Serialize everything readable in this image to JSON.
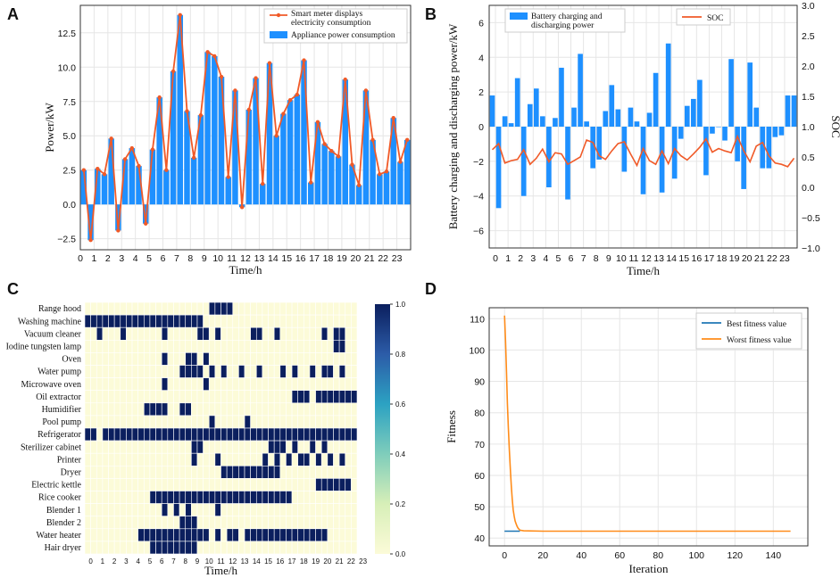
{
  "panels": {
    "A": {
      "letter": "A"
    },
    "B": {
      "letter": "B"
    },
    "C": {
      "letter": "C"
    },
    "D": {
      "letter": "D"
    }
  },
  "colors": {
    "bar_blue": "#1E90FF",
    "line_orange": "#F05A28",
    "heat_on": "#0B1F5E",
    "heat_off": "#FCFBD8",
    "best_line": "#1F77B4",
    "worst_line": "#FF8C1A",
    "grid": "#E6E6E6"
  },
  "chart_data": [
    {
      "id": "A",
      "type": "bar",
      "title": "",
      "xlabel": "Time/h",
      "ylabel": "Power/kW",
      "ylim": [
        -3.3,
        14.5
      ],
      "xlim": [
        0,
        24
      ],
      "x_ticks": [
        "0",
        "1",
        "2",
        "3",
        "4",
        "5",
        "6",
        "7",
        "8",
        "9",
        "10",
        "11",
        "12",
        "13",
        "14",
        "15",
        "16",
        "17",
        "18",
        "19",
        "20",
        "21",
        "22",
        "23"
      ],
      "y_ticks": [
        "−2.5",
        "0.0",
        "2.5",
        "5.0",
        "7.5",
        "10.0",
        "12.5"
      ],
      "y_tick_values": [
        -2.5,
        0,
        2.5,
        5,
        7.5,
        10,
        12.5
      ],
      "legend": [
        "Smart meter displays electricity consumption",
        "Appliance power consumption"
      ],
      "series": [
        {
          "name": "Appliance power consumption",
          "type": "bar",
          "values": [
            2.5,
            -2.6,
            2.6,
            2.2,
            4.8,
            -1.9,
            3.3,
            4.1,
            2.8,
            -1.4,
            4.0,
            7.8,
            2.5,
            9.7,
            13.8,
            6.8,
            3.4,
            6.5,
            11.1,
            10.8,
            9.3,
            2.0,
            8.3,
            -0.2,
            6.9,
            9.2,
            1.5,
            10.3,
            5.0,
            6.6,
            7.6,
            8.0,
            10.5,
            1.6,
            6.0,
            4.4,
            3.9,
            3.5,
            9.1,
            2.9,
            1.4,
            8.3,
            4.7,
            2.2,
            2.4,
            6.3,
            3.1,
            4.7
          ]
        },
        {
          "name": "Smart meter displays electricity consumption",
          "type": "line",
          "values": [
            2.5,
            -2.6,
            2.6,
            2.2,
            4.8,
            -1.9,
            3.3,
            4.1,
            2.8,
            -1.4,
            4.0,
            7.8,
            2.5,
            9.7,
            13.8,
            6.8,
            3.4,
            6.5,
            11.1,
            10.8,
            9.3,
            2.0,
            8.3,
            -0.2,
            6.9,
            9.2,
            1.5,
            10.3,
            5.0,
            6.6,
            7.6,
            8.0,
            10.5,
            1.6,
            6.0,
            4.4,
            3.9,
            3.5,
            9.1,
            2.9,
            1.4,
            8.3,
            4.7,
            2.2,
            2.4,
            6.3,
            3.1,
            4.7
          ]
        }
      ]
    },
    {
      "id": "B",
      "type": "bar",
      "xlabel": "Time/h",
      "ylabel": "Battery charging and discharging power/kW",
      "ylabel_right": "SOC",
      "ylim": [
        -7,
        7
      ],
      "ylim_right": [
        -1.0,
        3.0
      ],
      "x_ticks": [
        "0",
        "1",
        "2",
        "3",
        "4",
        "5",
        "6",
        "7",
        "8",
        "9",
        "10",
        "11",
        "12",
        "13",
        "14",
        "15",
        "16",
        "17",
        "18",
        "19",
        "20",
        "21",
        "22",
        "23"
      ],
      "y_ticks": [
        "−6",
        "−4",
        "−2",
        "0",
        "2",
        "4",
        "6"
      ],
      "y_tick_values": [
        -6,
        -4,
        -2,
        0,
        2,
        4,
        6
      ],
      "y_ticks_right": [
        "−1.0",
        "−0.5",
        "0.0",
        "0.5",
        "1.0",
        "1.5",
        "2.0",
        "2.5",
        "3.0"
      ],
      "y_tick_values_right": [
        -1.0,
        -0.5,
        0.0,
        0.5,
        1.0,
        1.5,
        2.0,
        2.5,
        3.0
      ],
      "legend": [
        "Battery charging and discharging power",
        "SOC"
      ],
      "series": [
        {
          "name": "Battery charging and discharging power",
          "type": "bar",
          "values": [
            1.8,
            -4.7,
            0.6,
            0.2,
            2.8,
            -4.0,
            1.3,
            2.2,
            0.6,
            -3.5,
            0.5,
            3.4,
            -4.2,
            1.1,
            4.2,
            0.3,
            -2.4,
            -1.9,
            0.9,
            2.4,
            1.0,
            -2.6,
            1.1,
            0.3,
            -3.9,
            0.8,
            3.1,
            -3.8,
            4.8,
            -3.0,
            -0.7,
            1.2,
            1.6,
            2.7,
            -2.8,
            -0.4,
            0,
            -0.8,
            3.9,
            -2.0,
            -3.6,
            3.7,
            1.1,
            -2.4,
            -2.4,
            -0.6,
            -0.5,
            1.8,
            1.8
          ]
        },
        {
          "name": "SOC",
          "type": "line",
          "axis": "right",
          "values": [
            0.62,
            0.72,
            0.4,
            0.44,
            0.46,
            0.62,
            0.38,
            0.48,
            0.63,
            0.42,
            0.57,
            0.55,
            0.38,
            0.44,
            0.5,
            0.78,
            0.74,
            0.52,
            0.46,
            0.6,
            0.72,
            0.75,
            0.55,
            0.36,
            0.64,
            0.44,
            0.38,
            0.6,
            0.39,
            0.64,
            0.52,
            0.45,
            0.55,
            0.66,
            0.8,
            0.58,
            0.64,
            0.6,
            0.57,
            0.84,
            0.6,
            0.42,
            0.68,
            0.74,
            0.52,
            0.4,
            0.38,
            0.34,
            0.48
          ]
        }
      ]
    },
    {
      "id": "C",
      "type": "heatmap",
      "xlabel": "Time/h",
      "colorbar_ticks": [
        "0.0",
        "0.2",
        "0.4",
        "0.6",
        "0.8",
        "1.0"
      ],
      "colorbar_range": [
        0,
        1
      ],
      "x_ticks": [
        "0",
        "1",
        "2",
        "3",
        "4",
        "5",
        "6",
        "7",
        "8",
        "9",
        "10",
        "11",
        "12",
        "13",
        "14",
        "15",
        "16",
        "17",
        "18",
        "19",
        "20",
        "21",
        "22",
        "23"
      ],
      "rows": [
        {
          "label": "Range hood",
          "on": [
            21,
            22,
            23,
            24
          ]
        },
        {
          "label": "Washing machine",
          "on": [
            0,
            1,
            2,
            3,
            4,
            5,
            6,
            7,
            8,
            9,
            10,
            11,
            12,
            13,
            14,
            15,
            16,
            17,
            18,
            19
          ]
        },
        {
          "label": "Vacuum cleaner",
          "on": [
            2,
            6,
            13,
            19,
            20,
            22,
            28,
            29,
            32,
            40,
            42,
            43
          ]
        },
        {
          "label": "Iodine tungsten lamp",
          "on": [
            42,
            43
          ]
        },
        {
          "label": "Oven",
          "on": [
            13,
            17,
            18,
            20
          ]
        },
        {
          "label": "Water pump",
          "on": [
            16,
            17,
            18,
            19,
            21,
            23,
            26,
            29,
            33,
            35,
            38,
            40,
            41,
            43
          ]
        },
        {
          "label": "Microwave oven",
          "on": [
            13,
            20
          ]
        },
        {
          "label": "Oil extractor",
          "on": [
            35,
            36,
            37,
            39,
            40,
            41,
            42,
            43,
            44,
            45
          ]
        },
        {
          "label": "Humidifier",
          "on": [
            10,
            11,
            12,
            13,
            16,
            17
          ]
        },
        {
          "label": "Pool pump",
          "on": [
            21,
            27
          ]
        },
        {
          "label": "Refrigerator",
          "on": [
            0,
            1,
            3,
            4,
            5,
            6,
            7,
            8,
            9,
            10,
            11,
            12,
            13,
            14,
            15,
            16,
            17,
            18,
            19,
            20,
            21,
            22,
            23,
            24,
            25,
            26,
            27,
            28,
            29,
            30,
            31,
            32,
            33,
            34,
            35,
            36,
            37,
            38,
            39,
            40,
            41,
            42,
            43,
            44,
            45
          ]
        },
        {
          "label": "Sterilizer cabinet",
          "on": [
            18,
            19,
            31,
            32,
            33,
            35,
            38,
            40
          ]
        },
        {
          "label": "Printer",
          "on": [
            18,
            22,
            30,
            32,
            34,
            36,
            37,
            39,
            41,
            43
          ]
        },
        {
          "label": "Dryer",
          "on": [
            23,
            24,
            25,
            26,
            27,
            28,
            29,
            30,
            31,
            32
          ]
        },
        {
          "label": "Electric kettle",
          "on": [
            39,
            40,
            41,
            42,
            43,
            44
          ]
        },
        {
          "label": "Rice cooker",
          "on": [
            11,
            12,
            13,
            14,
            15,
            16,
            17,
            18,
            19,
            20,
            21,
            22,
            23,
            24,
            25,
            26,
            27,
            28,
            29,
            30,
            31,
            32,
            33,
            34
          ]
        },
        {
          "label": "Blender 1",
          "on": [
            13,
            15,
            17,
            22
          ]
        },
        {
          "label": "Blender 2",
          "on": [
            16,
            17,
            18
          ]
        },
        {
          "label": "Water heater",
          "on": [
            9,
            10,
            11,
            12,
            13,
            14,
            15,
            16,
            17,
            18,
            19,
            20,
            22,
            24,
            25,
            27,
            28,
            29,
            30,
            31,
            32,
            33,
            34,
            35,
            36,
            37,
            38,
            39,
            40
          ]
        },
        {
          "label": "Hair dryer",
          "on": [
            11,
            12,
            13,
            14,
            15,
            16,
            17,
            18
          ]
        }
      ]
    },
    {
      "id": "D",
      "type": "line",
      "xlabel": "Iteration",
      "ylabel": "Fitness",
      "xlim": [
        -8,
        158
      ],
      "ylim": [
        37.5,
        113.5
      ],
      "x_ticks": [
        "0",
        "20",
        "40",
        "60",
        "80",
        "100",
        "120",
        "140"
      ],
      "x_tick_values": [
        0,
        20,
        40,
        60,
        80,
        100,
        120,
        140
      ],
      "y_ticks": [
        "40",
        "50",
        "60",
        "70",
        "80",
        "90",
        "100",
        "110"
      ],
      "y_tick_values": [
        40,
        50,
        60,
        70,
        80,
        90,
        100,
        110
      ],
      "legend": [
        "Best fitness value",
        "Worst fitness value"
      ],
      "series": [
        {
          "name": "Best fitness value",
          "x": [
            0,
            8
          ],
          "values": [
            42.2,
            42.2
          ]
        },
        {
          "name": "Worst fitness value",
          "x": [
            0,
            0.5,
            1,
            1.5,
            2,
            2.5,
            3,
            3.5,
            4,
            4.5,
            5,
            5.5,
            6,
            6.5,
            7,
            8,
            10,
            20,
            50,
            100,
            149
          ],
          "values": [
            111,
            103,
            93,
            83,
            75,
            68,
            62,
            57,
            52.5,
            49,
            47,
            45.5,
            44.6,
            43.8,
            43.2,
            42.5,
            42.3,
            42.2,
            42.2,
            42.2,
            42.2
          ]
        }
      ]
    }
  ]
}
